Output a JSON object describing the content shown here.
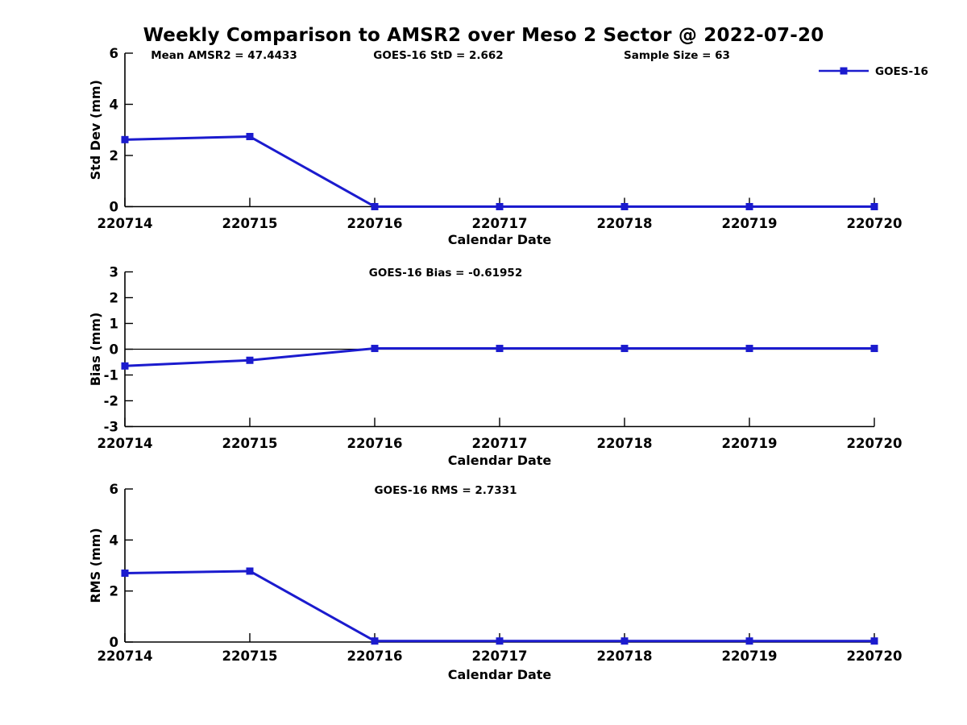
{
  "figure": {
    "title": "Weekly Comparison to AMSR2 over Meso 2 Sector @ 2022-07-20",
    "background_color": "#ffffff",
    "text_color": "#000000",
    "line_color": "#1b1bce",
    "legend": {
      "label": "GOES-16",
      "position": "top-right"
    }
  },
  "chart_data": [
    {
      "type": "line",
      "panel": "std-dev",
      "annotations": [
        "Mean AMSR2 = 47.4433",
        "GOES-16 StD = 2.662",
        "Sample Size = 63"
      ],
      "categories": [
        "220714",
        "220715",
        "220716",
        "220717",
        "220718",
        "220719",
        "220720"
      ],
      "series": [
        {
          "name": "GOES-16",
          "values": [
            2.62,
            2.74,
            0.0,
            0.0,
            0.0,
            0.0,
            0.0
          ]
        }
      ],
      "xlabel": "Calendar Date",
      "ylabel": "Std Dev (mm)",
      "ylim": [
        0,
        6
      ],
      "yticks": [
        0,
        2,
        4,
        6
      ],
      "grid": false,
      "zero_line": false,
      "show_legend": true
    },
    {
      "type": "line",
      "panel": "bias",
      "annotations": [
        "GOES-16 Bias  = -0.61952"
      ],
      "categories": [
        "220714",
        "220715",
        "220716",
        "220717",
        "220718",
        "220719",
        "220720"
      ],
      "series": [
        {
          "name": "GOES-16",
          "values": [
            -0.65,
            -0.43,
            0.03,
            0.03,
            0.03,
            0.03,
            0.03
          ]
        }
      ],
      "xlabel": "Calendar Date",
      "ylabel": "Bias (mm)",
      "ylim": [
        -3,
        3
      ],
      "yticks": [
        -3,
        -2,
        -1,
        0,
        1,
        2,
        3
      ],
      "grid": false,
      "zero_line": true,
      "show_legend": false
    },
    {
      "type": "line",
      "panel": "rms",
      "annotations": [
        "GOES-16 RMS = 2.7331"
      ],
      "categories": [
        "220714",
        "220715",
        "220716",
        "220717",
        "220718",
        "220719",
        "220720"
      ],
      "series": [
        {
          "name": "GOES-16",
          "values": [
            2.7,
            2.78,
            0.04,
            0.04,
            0.04,
            0.04,
            0.04
          ]
        }
      ],
      "xlabel": "Calendar Date",
      "ylabel": "RMS (mm)",
      "ylim": [
        0,
        6
      ],
      "yticks": [
        0,
        2,
        4,
        6
      ],
      "grid": false,
      "zero_line": false,
      "show_legend": false
    }
  ]
}
